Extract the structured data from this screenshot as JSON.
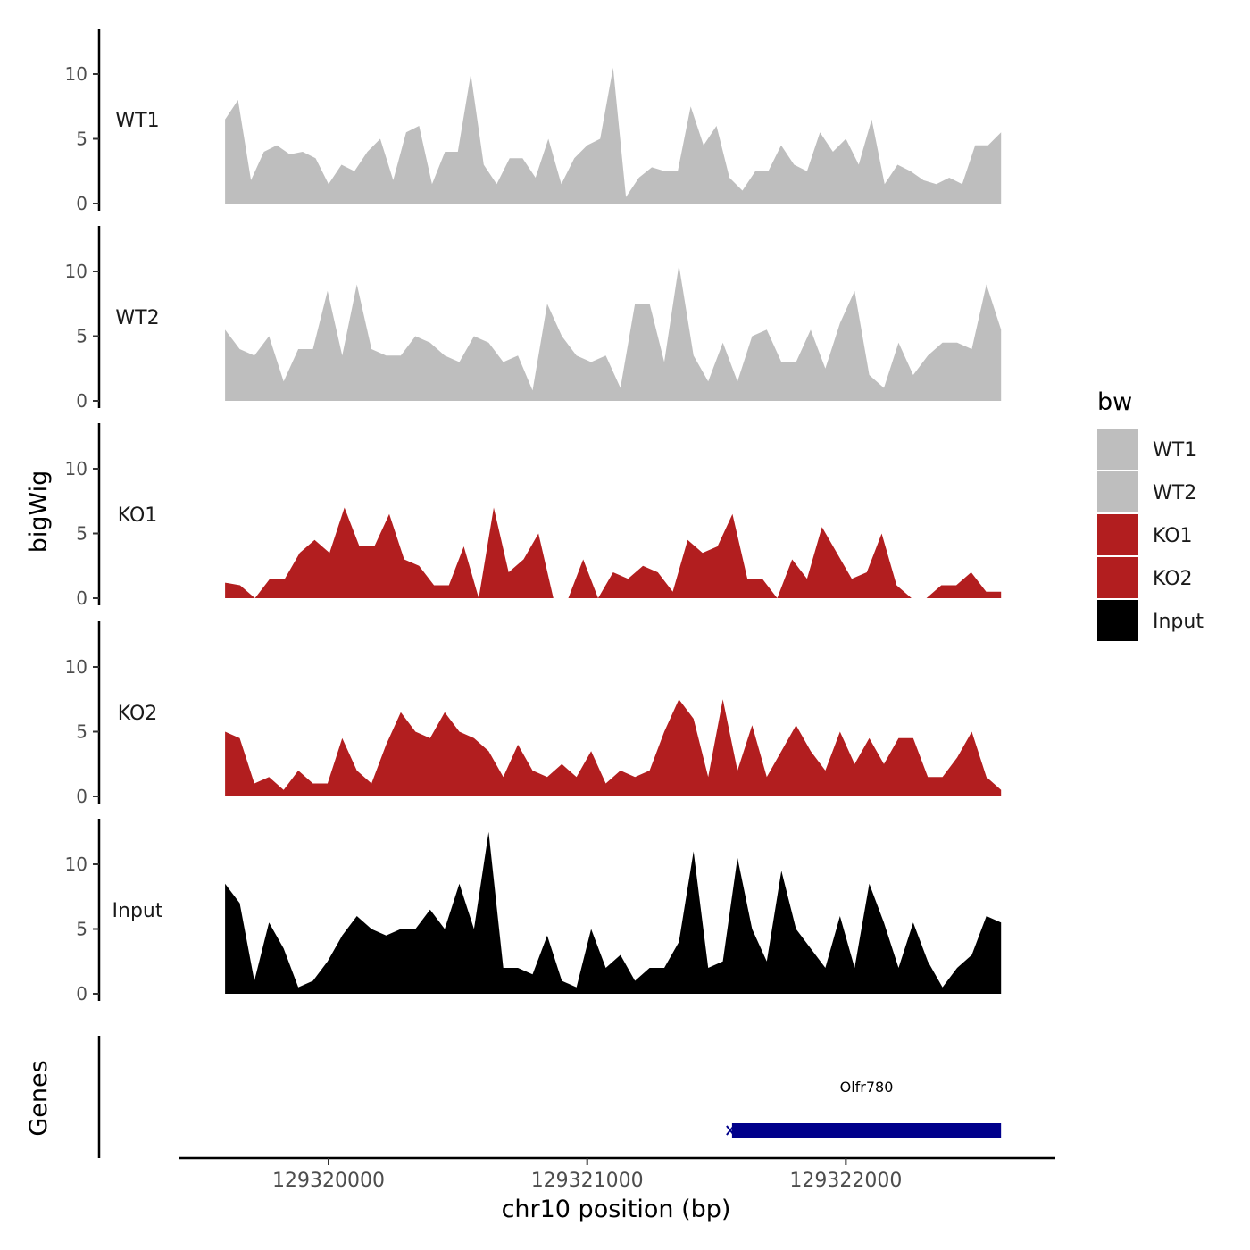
{
  "chart_data": {
    "type": "area",
    "title": "",
    "xlabel": "chr10 position (bp)",
    "ylabel": "bigWig",
    "genes_label": "Genes",
    "xlim": [
      129319420,
      129322810
    ],
    "ylim": [
      0,
      14
    ],
    "x_ticks": [
      129320000,
      129321000,
      129322000
    ],
    "x_tick_labels": [
      "129320000",
      "129321000",
      "129322000"
    ],
    "y_ticks": [
      0,
      5,
      10
    ],
    "y_tick_labels": [
      "0",
      "5",
      "10"
    ],
    "grid": false,
    "signal_start": 129319600,
    "signal_step": 50,
    "legend": {
      "title": "bw",
      "position": "right",
      "entries": [
        {
          "label": "WT1",
          "color": "#bebebe"
        },
        {
          "label": "WT2",
          "color": "#bebebe"
        },
        {
          "label": "KO1",
          "color": "#b21e1f"
        },
        {
          "label": "KO2",
          "color": "#b21e1f"
        },
        {
          "label": "Input",
          "color": "#000000"
        }
      ]
    },
    "series": [
      {
        "name": "WT1",
        "color": "#bebebe",
        "values": [
          6.5,
          8.0,
          1.8,
          4.0,
          4.5,
          3.8,
          4.0,
          3.5,
          1.5,
          3.0,
          2.5,
          4.0,
          5.0,
          1.8,
          5.5,
          6.0,
          1.5,
          4.0,
          4.0,
          10.0,
          3.0,
          1.5,
          3.5,
          3.5,
          2.0,
          5.0,
          1.5,
          3.5,
          4.5,
          5.0,
          10.5,
          0.5,
          2.0,
          2.8,
          2.5,
          2.5,
          7.5,
          4.5,
          6.0,
          2.0,
          1.0,
          2.5,
          2.5,
          4.5,
          3.0,
          2.5,
          5.5,
          4.0,
          5.0,
          3.0,
          6.5,
          1.5,
          3.0,
          2.5,
          1.8,
          1.5,
          2.0,
          1.5,
          4.5,
          4.5,
          5.5
        ]
      },
      {
        "name": "WT2",
        "color": "#bebebe",
        "values": [
          5.5,
          4.0,
          3.5,
          5.0,
          1.5,
          4.0,
          4.0,
          8.5,
          3.5,
          9.0,
          4.0,
          3.5,
          3.5,
          5.0,
          4.5,
          3.5,
          3.0,
          5.0,
          4.5,
          3.0,
          3.5,
          0.8,
          7.5,
          5.0,
          3.5,
          3.0,
          3.5,
          1.0,
          7.5,
          7.5,
          3.0,
          10.5,
          3.5,
          1.5,
          4.5,
          1.5,
          5.0,
          5.5,
          3.0,
          3.0,
          5.5,
          2.5,
          6.0,
          8.5,
          2.0,
          1.0,
          4.5,
          2.0,
          3.5,
          4.5,
          4.5,
          4.0,
          9.0,
          5.5
        ]
      },
      {
        "name": "KO1",
        "color": "#b21e1f",
        "values": [
          1.2,
          1.0,
          0,
          1.5,
          1.5,
          3.5,
          4.5,
          3.5,
          7.0,
          4.0,
          4.0,
          6.5,
          3.0,
          2.5,
          1.0,
          1.0,
          4.0,
          0,
          7.0,
          2.0,
          3.0,
          5.0,
          0,
          0,
          3.0,
          0,
          2.0,
          1.5,
          2.5,
          2.0,
          0.5,
          4.5,
          3.5,
          4.0,
          6.5,
          1.5,
          1.5,
          0,
          3.0,
          1.5,
          5.5,
          3.5,
          1.5,
          2.0,
          5.0,
          1.0,
          0,
          0,
          1.0,
          1.0,
          2.0,
          0.5,
          0.5
        ]
      },
      {
        "name": "KO2",
        "color": "#b21e1f",
        "values": [
          5.0,
          4.5,
          1.0,
          1.5,
          0.5,
          2.0,
          1.0,
          1.0,
          4.5,
          2.0,
          1.0,
          4.0,
          6.5,
          5.0,
          4.5,
          6.5,
          5.0,
          4.5,
          3.5,
          1.5,
          4.0,
          2.0,
          1.5,
          2.5,
          1.5,
          3.5,
          1.0,
          2.0,
          1.5,
          2.0,
          5.0,
          7.5,
          6.0,
          1.5,
          7.5,
          2.0,
          5.5,
          1.5,
          3.5,
          5.5,
          3.5,
          2.0,
          5.0,
          2.5,
          4.5,
          2.5,
          4.5,
          4.5,
          1.5,
          1.5,
          3.0,
          5.0,
          1.5,
          0.5
        ]
      },
      {
        "name": "Input",
        "color": "#000000",
        "values": [
          8.5,
          7.0,
          1.0,
          5.5,
          3.5,
          0.5,
          1.0,
          2.5,
          4.5,
          6.0,
          5.0,
          4.5,
          5.0,
          5.0,
          6.5,
          5.0,
          8.5,
          5.0,
          12.5,
          2.0,
          2.0,
          1.5,
          4.5,
          1.0,
          0.5,
          5.0,
          2.0,
          3.0,
          1.0,
          2.0,
          2.0,
          4.0,
          11.0,
          2.0,
          2.5,
          10.5,
          5.0,
          2.5,
          9.5,
          5.0,
          3.5,
          2.0,
          6.0,
          2.0,
          8.5,
          5.5,
          2.0,
          5.5,
          2.5,
          0.5,
          2.0,
          3.0,
          6.0,
          5.5
        ]
      }
    ],
    "genes": [
      {
        "name": "Olfr780",
        "start": 129321560,
        "end": 129322600,
        "color": "#00008b"
      }
    ]
  }
}
